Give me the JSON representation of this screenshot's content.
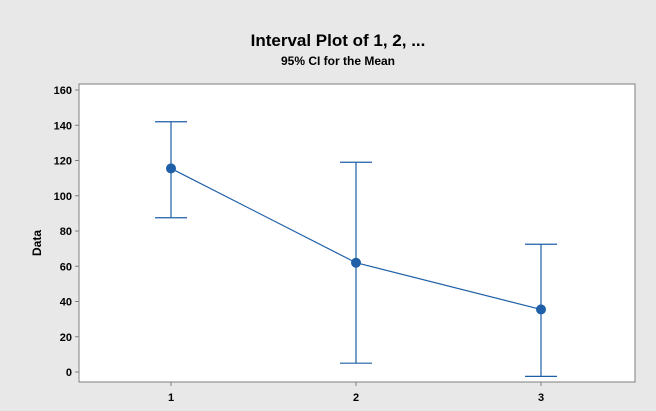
{
  "chart_data": {
    "type": "interval",
    "title": "Interval Plot of 1, 2, ...",
    "subtitle": "95% CI for the Mean",
    "xlabel": "",
    "ylabel": "Data",
    "categories": [
      "1",
      "2",
      "3"
    ],
    "ylim": [
      -10,
      160
    ],
    "yticks": [
      0,
      20,
      40,
      60,
      80,
      100,
      120,
      140,
      160
    ],
    "series": [
      {
        "means": [
          115.5,
          62,
          35.5
        ],
        "lower": [
          87.5,
          5,
          -2.5
        ],
        "upper": [
          142,
          119,
          72.5
        ]
      }
    ],
    "grid": false,
    "colors": {
      "series": "#1f5fa8",
      "background": "#e8e8e8",
      "plot_area": "#ffffff",
      "axis": "#7f7f7f"
    }
  }
}
